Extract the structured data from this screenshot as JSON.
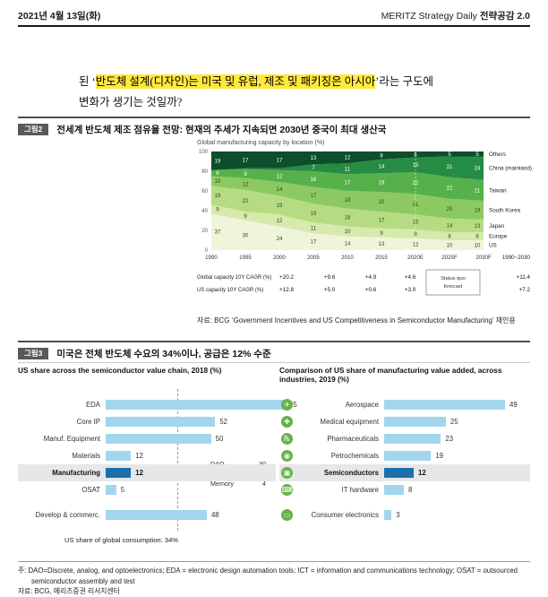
{
  "header": {
    "date": "2021년 4월 13일(화)",
    "brand": "MERITZ Strategy Daily ",
    "brand_bold": "전략공감 2.0"
  },
  "paragraph": {
    "prefix": "된 ‘",
    "highlight": "반도체 설계(디자인)는 미국 및 유럽, 제조 및 패키징은 아시아",
    "suffix": "’라는 구도에",
    "line2": "변화가 생기는 것일까?"
  },
  "figure2": {
    "tag": "그림2",
    "title": "전세계 반도체 제조 점유율 전망: 현재의 추세가 지속되면 2030년 중국이 최대 생산국",
    "source": "자료: BCG ‘Government Incentives and US Competitiveness in Semiconductor Manufacturing’ 재인용"
  },
  "figure3": {
    "tag": "그림3",
    "title": "미국은 전체 반도체 수요의 34%이나, 공급은 12% 수준"
  },
  "footer": {
    "note": "주: DAO=Discrete, analog, and optoelectronics; EDA = electronic design automation tools; ICT = information and communications technology; OSAT = outsourced semiconductor assembly and test",
    "source": "자료: BCG, 메리츠증권 리서치센터"
  },
  "colors": {
    "bar_light_blue": "#a3d6ee",
    "bar_dark_blue": "#1b6fad",
    "row_highlight": "#e6e7e9",
    "badge_gray": "#58595b",
    "highlight_yellow": "#ffe93d",
    "icon_green": "#65b346"
  },
  "chart_data": [
    {
      "id": "global-manufacturing-capacity",
      "type": "area",
      "stacked": true,
      "title": "Global manufacturing capacity by location (%)",
      "x": [
        "1990",
        "1995",
        "2000",
        "2005",
        "2010",
        "2015",
        "2020E",
        "2025F",
        "2030F"
      ],
      "ylim": [
        0,
        100
      ],
      "yticks": [
        0,
        20,
        40,
        60,
        80,
        100
      ],
      "series": [
        {
          "name": "US",
          "color": "#eef5d9",
          "values": [
            37,
            30,
            24,
            17,
            14,
            13,
            12,
            10,
            10
          ]
        },
        {
          "name": "Europe",
          "color": "#d7e9ab",
          "values": [
            9,
            9,
            12,
            11,
            10,
            9,
            9,
            8,
            8
          ]
        },
        {
          "name": "Japan",
          "color": "#b5dc82",
          "values": [
            19,
            22,
            19,
            19,
            18,
            17,
            15,
            14,
            13
          ]
        },
        {
          "name": "South Korea",
          "color": "#8cc963",
          "values": [
            10,
            12,
            14,
            17,
            18,
            20,
            21,
            20,
            19
          ]
        },
        {
          "name": "Taiwan",
          "color": "#57b14b",
          "values": [
            6,
            9,
            12,
            16,
            17,
            19,
            22,
            22,
            21
          ]
        },
        {
          "name": "China (mainland)",
          "color": "#268c44",
          "values": [
            0,
            1,
            2,
            7,
            11,
            14,
            15,
            21,
            24
          ]
        },
        {
          "name": "Others",
          "color": "#0d4e2b",
          "values": [
            19,
            17,
            17,
            13,
            12,
            8,
            6,
            5,
            5
          ]
        }
      ],
      "table": {
        "row_labels": [
          "Global capacity 10Y CAGR (%)",
          "US capacity 10Y CAGR (%)"
        ],
        "rows": [
          [
            "+20.2",
            "+9.6",
            "+4.9",
            "+4.6",
            "+11.4"
          ],
          [
            "+12.8",
            "+5.0",
            "+0.6",
            "+3.0",
            "+7.2"
          ]
        ],
        "period_label": "1990~2030",
        "forecast_label_line1": "Status quo",
        "forecast_label_line2": "forecast"
      }
    },
    {
      "id": "us-share-value-chain",
      "type": "bar",
      "orientation": "horizontal",
      "title": "US share across the semiconductor value chain, 2018 (%)",
      "categories": [
        "EDA",
        "Core IP",
        "Manuf. Equipment",
        "Materials",
        "Manufacturing",
        "OSAT",
        "Develop & commerc."
      ],
      "values": [
        85,
        52,
        50,
        12,
        12,
        5,
        48
      ],
      "highlight_index": 4,
      "annotation": {
        "rows": [
          [
            "DAO",
            "30"
          ],
          [
            "Logic",
            "12"
          ],
          [
            "Memory",
            "4"
          ]
        ]
      },
      "reference_line": {
        "value": 34,
        "label": "US share of global consumption: 34%"
      }
    },
    {
      "id": "us-share-industries",
      "type": "bar",
      "orientation": "horizontal",
      "title": "Comparison of US share of manufacturing value added, across industries, 2019 (%)",
      "categories": [
        "Aerospace",
        "Medical equipment",
        "Pharmaceuticals",
        "Petrochemicals",
        "Semiconductors",
        "IT hardware",
        "Consumer electronics"
      ],
      "values": [
        49,
        25,
        23,
        19,
        12,
        8,
        3
      ],
      "highlight_index": 4,
      "icons": [
        "airplane",
        "medical-cross",
        "pharma-rx",
        "oil-drop",
        "chip",
        "keyboard",
        "screen"
      ]
    }
  ]
}
